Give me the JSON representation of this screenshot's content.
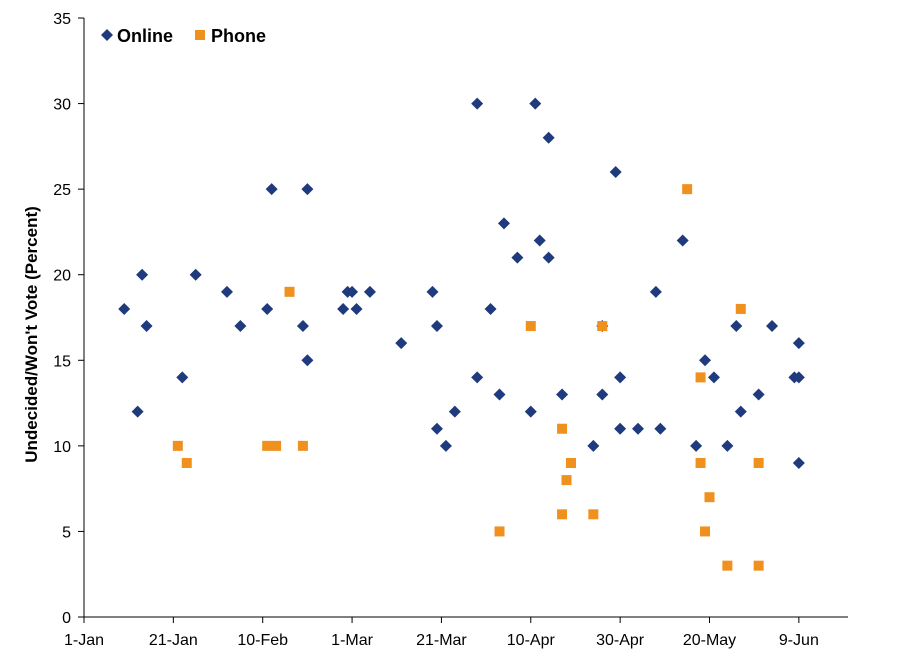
{
  "chart_data": {
    "type": "scatter",
    "title": "",
    "xlabel": "",
    "ylabel": "Undecided/Won't Vote (Percent)",
    "xlim": [
      "1-Jan",
      "20-Jun"
    ],
    "ylim": [
      0,
      35
    ],
    "grid": false,
    "legend_position": "top-left",
    "x_tick_labels": [
      "1-Jan",
      "21-Jan",
      "10-Feb",
      "1-Mar",
      "21-Mar",
      "10-Apr",
      "30-Apr",
      "20-May",
      "9-Jun"
    ],
    "y_tick_labels": [
      "0",
      "5",
      "10",
      "15",
      "20",
      "25",
      "30",
      "35"
    ],
    "series": [
      {
        "name": "Online",
        "marker": "diamond",
        "color": "#1f3a7d",
        "points": [
          {
            "x": "10-Jan",
            "y": 18
          },
          {
            "x": "13-Jan",
            "y": 12
          },
          {
            "x": "14-Jan",
            "y": 20
          },
          {
            "x": "15-Jan",
            "y": 17
          },
          {
            "x": "23-Jan",
            "y": 14
          },
          {
            "x": "26-Jan",
            "y": 20
          },
          {
            "x": "2-Feb",
            "y": 19
          },
          {
            "x": "5-Feb",
            "y": 17
          },
          {
            "x": "11-Feb",
            "y": 18
          },
          {
            "x": "12-Feb",
            "y": 25
          },
          {
            "x": "19-Feb",
            "y": 17
          },
          {
            "x": "20-Feb",
            "y": 25
          },
          {
            "x": "20-Feb",
            "y": 15
          },
          {
            "x": "28-Feb",
            "y": 18
          },
          {
            "x": "29-Feb",
            "y": 19
          },
          {
            "x": "1-Mar",
            "y": 19
          },
          {
            "x": "2-Mar",
            "y": 18
          },
          {
            "x": "5-Mar",
            "y": 19
          },
          {
            "x": "12-Mar",
            "y": 16
          },
          {
            "x": "19-Mar",
            "y": 19
          },
          {
            "x": "20-Mar",
            "y": 17
          },
          {
            "x": "20-Mar",
            "y": 11
          },
          {
            "x": "22-Mar",
            "y": 10
          },
          {
            "x": "24-Mar",
            "y": 12
          },
          {
            "x": "29-Mar",
            "y": 30
          },
          {
            "x": "29-Mar",
            "y": 14
          },
          {
            "x": "1-Apr",
            "y": 18
          },
          {
            "x": "3-Apr",
            "y": 13
          },
          {
            "x": "4-Apr",
            "y": 23
          },
          {
            "x": "7-Apr",
            "y": 21
          },
          {
            "x": "10-Apr",
            "y": 12
          },
          {
            "x": "11-Apr",
            "y": 30
          },
          {
            "x": "12-Apr",
            "y": 22
          },
          {
            "x": "14-Apr",
            "y": 21
          },
          {
            "x": "14-Apr",
            "y": 28
          },
          {
            "x": "17-Apr",
            "y": 13
          },
          {
            "x": "24-Apr",
            "y": 10
          },
          {
            "x": "26-Apr",
            "y": 17
          },
          {
            "x": "26-Apr",
            "y": 13
          },
          {
            "x": "29-Apr",
            "y": 26
          },
          {
            "x": "30-Apr",
            "y": 14
          },
          {
            "x": "30-Apr",
            "y": 11
          },
          {
            "x": "4-May",
            "y": 11
          },
          {
            "x": "8-May",
            "y": 19
          },
          {
            "x": "9-May",
            "y": 11
          },
          {
            "x": "14-May",
            "y": 22
          },
          {
            "x": "17-May",
            "y": 10
          },
          {
            "x": "19-May",
            "y": 15
          },
          {
            "x": "21-May",
            "y": 14
          },
          {
            "x": "24-May",
            "y": 10
          },
          {
            "x": "26-May",
            "y": 17
          },
          {
            "x": "27-May",
            "y": 12
          },
          {
            "x": "31-May",
            "y": 13
          },
          {
            "x": "3-Jun",
            "y": 17
          },
          {
            "x": "8-Jun",
            "y": 14
          },
          {
            "x": "9-Jun",
            "y": 16
          },
          {
            "x": "9-Jun",
            "y": 14
          },
          {
            "x": "9-Jun",
            "y": 9
          }
        ]
      },
      {
        "name": "Phone",
        "marker": "square",
        "color": "#f0901f",
        "points": [
          {
            "x": "22-Jan",
            "y": 10
          },
          {
            "x": "24-Jan",
            "y": 9
          },
          {
            "x": "11-Feb",
            "y": 10
          },
          {
            "x": "13-Feb",
            "y": 10
          },
          {
            "x": "16-Feb",
            "y": 19
          },
          {
            "x": "19-Feb",
            "y": 10
          },
          {
            "x": "3-Apr",
            "y": 5
          },
          {
            "x": "10-Apr",
            "y": 17
          },
          {
            "x": "17-Apr",
            "y": 11
          },
          {
            "x": "17-Apr",
            "y": 6
          },
          {
            "x": "18-Apr",
            "y": 8
          },
          {
            "x": "19-Apr",
            "y": 9
          },
          {
            "x": "24-Apr",
            "y": 6
          },
          {
            "x": "26-Apr",
            "y": 17
          },
          {
            "x": "15-May",
            "y": 25
          },
          {
            "x": "18-May",
            "y": 14
          },
          {
            "x": "18-May",
            "y": 9
          },
          {
            "x": "19-May",
            "y": 5
          },
          {
            "x": "20-May",
            "y": 7
          },
          {
            "x": "24-May",
            "y": 3
          },
          {
            "x": "27-May",
            "y": 18
          },
          {
            "x": "31-May",
            "y": 9
          },
          {
            "x": "31-May",
            "y": 3
          }
        ]
      }
    ]
  }
}
